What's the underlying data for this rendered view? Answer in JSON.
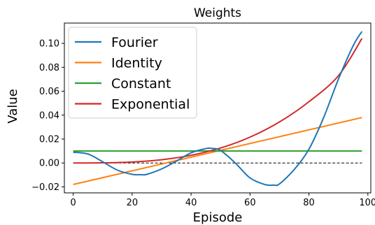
{
  "chart_data": {
    "type": "line",
    "title": "Weights",
    "xlabel": "Episode",
    "ylabel": "Value",
    "xlim": [
      -3,
      101
    ],
    "ylim": [
      -0.025,
      0.117
    ],
    "xticks": [
      0,
      20,
      40,
      60,
      80,
      100
    ],
    "yticks": [
      -0.02,
      0.0,
      0.02,
      0.04,
      0.06,
      0.08,
      0.1
    ],
    "ytick_labels": [
      "−0.02",
      "0.00",
      "0.02",
      "0.04",
      "0.06",
      "0.08",
      "0.10"
    ],
    "grid": false,
    "legend_position": "top-left",
    "series": [
      {
        "name": "Fourier",
        "color": "#1f77b4",
        "x": [
          0,
          5,
          10,
          15,
          20,
          23,
          25,
          30,
          35,
          40,
          45,
          47,
          50,
          55,
          60,
          65,
          68,
          70,
          75,
          80,
          85,
          90,
          95,
          98
        ],
        "y": [
          0.009,
          0.0075,
          0.001,
          -0.006,
          -0.0095,
          -0.0098,
          -0.0095,
          -0.005,
          0.0015,
          0.0085,
          0.012,
          0.0122,
          0.0105,
          0.0,
          -0.0125,
          -0.018,
          -0.0185,
          -0.0175,
          -0.0055,
          0.0115,
          0.038,
          0.07,
          0.098,
          0.11
        ]
      },
      {
        "name": "Identity",
        "color": "#ff7f0e",
        "x": [
          0,
          98
        ],
        "y": [
          -0.018,
          0.038
        ]
      },
      {
        "name": "Constant",
        "color": "#2ca02c",
        "x": [
          0,
          98
        ],
        "y": [
          0.01,
          0.01
        ]
      },
      {
        "name": "Exponential",
        "color": "#d62728",
        "x": [
          0,
          10,
          20,
          30,
          40,
          50,
          60,
          70,
          80,
          90,
          98
        ],
        "y": [
          0.0,
          0.0001,
          0.0008,
          0.0027,
          0.0064,
          0.0125,
          0.0216,
          0.0343,
          0.0512,
          0.0729,
          0.1041
        ]
      }
    ],
    "reference_line": {
      "y": 0.0,
      "x": [
        0,
        98
      ],
      "style": "dashed",
      "color": "#000000"
    }
  }
}
